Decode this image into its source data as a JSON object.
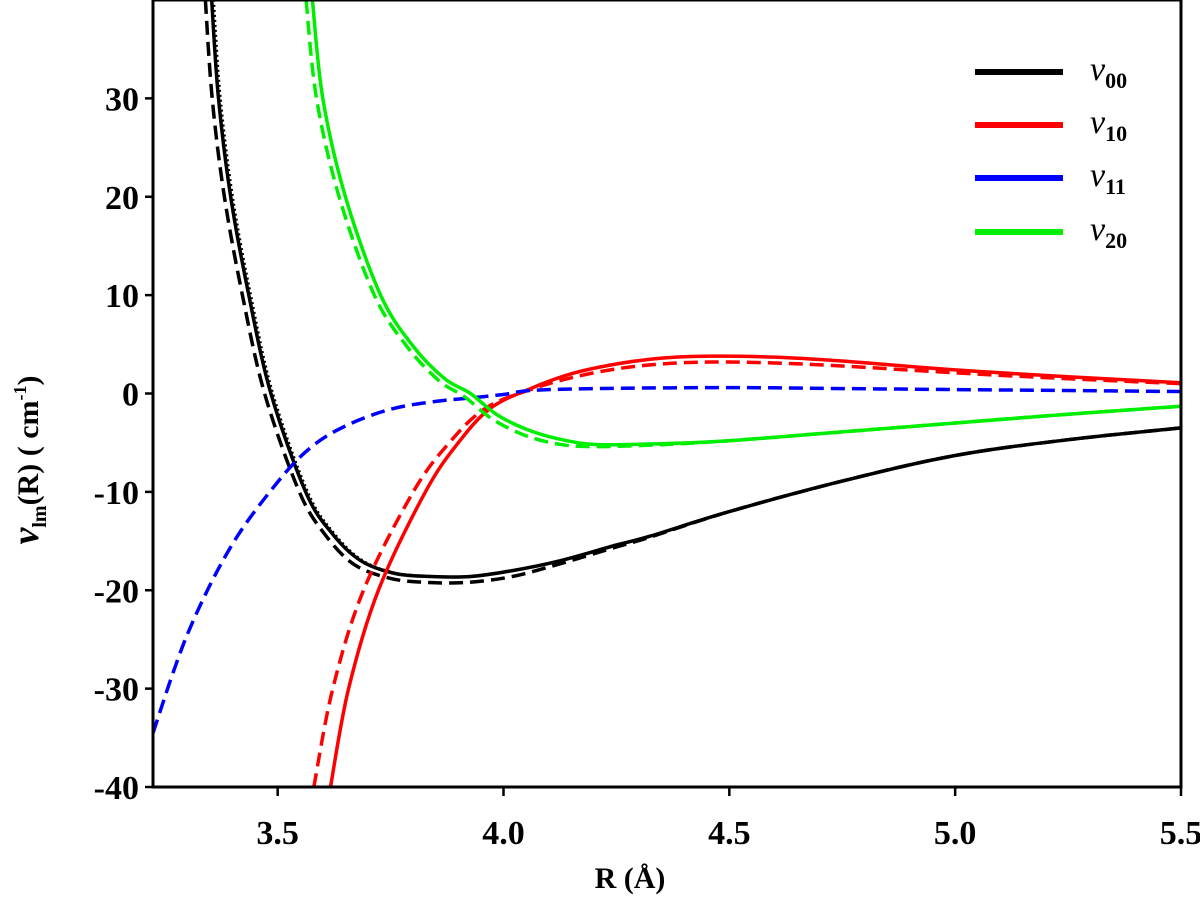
{
  "chart_data": {
    "type": "line",
    "title": "",
    "xlabel": "R (Å)",
    "ylabel": "ν_lm(R) ( cm^-1 )",
    "ylabel_parts": {
      "nu": "ν",
      "sub": "lm",
      "rest": "(R) ( cm",
      "sup": "-1",
      "close": ")"
    },
    "xlim": [
      3.224,
      5.5
    ],
    "ylim": [
      -40,
      40
    ],
    "xticks": [
      3.5,
      4.0,
      4.5,
      5.0,
      5.5
    ],
    "xtick_labels": [
      "3.5",
      "4.0",
      "4.5",
      "5.0",
      "5.5"
    ],
    "yticks": [
      30,
      20,
      10,
      0,
      -10,
      -20,
      -30,
      -40
    ],
    "ytick_labels": [
      "30",
      "20",
      "10",
      "0",
      "-10",
      "-20",
      "-30",
      "-40"
    ],
    "grid": false,
    "legend_position": "upper right",
    "legend": [
      {
        "symbol": "ν",
        "sub": "00",
        "color": "#000000"
      },
      {
        "symbol": "ν",
        "sub": "10",
        "color": "#ff0000"
      },
      {
        "symbol": "ν",
        "sub": "11",
        "color": "#0000ff"
      },
      {
        "symbol": "ν",
        "sub": "20",
        "color": "#00ee00"
      }
    ],
    "series": [
      {
        "name": "ν00 (solid)",
        "color": "#000000",
        "style": "solid",
        "x": [
          3.354,
          3.369,
          3.396,
          3.436,
          3.485,
          3.562,
          3.62,
          3.684,
          3.76,
          3.84,
          3.927,
          4.02,
          4.126,
          4.25,
          4.325,
          4.5,
          4.75,
          5.0,
          5.25,
          5.5
        ],
        "y": [
          40,
          30,
          20,
          10,
          0,
          -10,
          -14.2,
          -17.0,
          -18.3,
          -18.6,
          -18.6,
          -18.0,
          -17.0,
          -15.4,
          -14.5,
          -12.0,
          -8.9,
          -6.3,
          -4.7,
          -3.5
        ]
      },
      {
        "name": "ν00 (dotted)",
        "color": "#000000",
        "style": "dotted",
        "x": [
          3.358,
          3.373,
          3.4,
          3.44,
          3.489,
          3.566,
          3.624,
          3.688,
          3.764,
          3.844,
          3.93,
          4.02,
          4.126,
          4.25,
          4.325,
          4.5,
          4.75,
          5.0,
          5.25,
          5.5
        ],
        "y": [
          40,
          30,
          20,
          10,
          0,
          -10,
          -14.2,
          -17.0,
          -18.3,
          -18.6,
          -18.6,
          -18.0,
          -17.0,
          -15.4,
          -14.5,
          -12.0,
          -8.9,
          -6.3,
          -4.7,
          -3.5
        ]
      },
      {
        "name": "ν00 (dashed)",
        "color": "#000000",
        "style": "dashed",
        "x": [
          3.34,
          3.355,
          3.382,
          3.422,
          3.471,
          3.548,
          3.606,
          3.67,
          3.75,
          3.83,
          3.92,
          4.02,
          4.126,
          4.25,
          4.325,
          4.5,
          4.75,
          5.0,
          5.25,
          5.5
        ],
        "y": [
          40,
          30,
          20,
          10,
          0,
          -10,
          -14.4,
          -17.4,
          -18.8,
          -19.2,
          -19.2,
          -18.6,
          -17.3,
          -15.6,
          -14.6,
          -12.0,
          -8.9,
          -6.3,
          -4.7,
          -3.5
        ]
      },
      {
        "name": "ν10 (solid)",
        "color": "#ff0000",
        "style": "solid",
        "x": [
          3.617,
          3.657,
          3.723,
          3.827,
          3.9,
          3.971,
          4.06,
          4.15,
          4.25,
          4.35,
          4.46,
          4.6,
          4.75,
          5.0,
          5.25,
          5.5
        ],
        "y": [
          -40,
          -30,
          -20,
          -10,
          -5,
          -1.5,
          0.5,
          2.0,
          3.0,
          3.6,
          3.8,
          3.7,
          3.3,
          2.4,
          1.7,
          1.1
        ]
      },
      {
        "name": "ν10 (dashed)",
        "color": "#ff0000",
        "style": "dashed",
        "x": [
          3.58,
          3.622,
          3.69,
          3.8,
          3.88,
          3.96,
          4.06,
          4.15,
          4.25,
          4.35,
          4.46,
          4.6,
          4.75,
          5.0,
          5.25,
          5.5
        ],
        "y": [
          -40,
          -30,
          -20,
          -10,
          -5,
          -1.5,
          0.4,
          1.6,
          2.5,
          3.0,
          3.2,
          3.1,
          2.8,
          2.1,
          1.5,
          1.0
        ]
      },
      {
        "name": "ν11 (dashed)",
        "color": "#0000ff",
        "style": "dashed",
        "x": [
          3.224,
          3.3,
          3.396,
          3.5,
          3.573,
          3.65,
          3.75,
          3.85,
          3.916,
          4.0,
          4.06,
          4.2,
          4.5,
          4.75,
          5.0,
          5.25,
          5.5
        ],
        "y": [
          -34.5,
          -24.5,
          -15.6,
          -9.0,
          -5.5,
          -3.3,
          -1.6,
          -0.8,
          -0.5,
          -0.1,
          0.3,
          0.5,
          0.6,
          0.5,
          0.4,
          0.3,
          0.2
        ]
      },
      {
        "name": "ν20 (solid)",
        "color": "#00ee00",
        "style": "solid",
        "x": [
          3.577,
          3.6,
          3.65,
          3.728,
          3.8,
          3.87,
          3.927,
          3.987,
          4.06,
          4.14,
          4.215,
          4.35,
          4.5,
          4.75,
          5.0,
          5.25,
          5.5
        ],
        "y": [
          40,
          30,
          20,
          10,
          4.8,
          1.5,
          0,
          -2.2,
          -3.8,
          -4.8,
          -5.2,
          -5.1,
          -4.8,
          -3.9,
          -3.0,
          -2.1,
          -1.3
        ]
      },
      {
        "name": "ν20 (dashed)",
        "color": "#00ee00",
        "style": "dashed",
        "x": [
          3.563,
          3.586,
          3.636,
          3.714,
          3.786,
          3.857,
          3.913,
          3.975,
          4.05,
          4.13,
          4.21,
          4.35,
          4.5,
          4.75,
          5.0,
          5.25,
          5.5
        ],
        "y": [
          40,
          30,
          20,
          10,
          4.8,
          1.3,
          -0.3,
          -2.6,
          -4.3,
          -5.2,
          -5.4,
          -5.2,
          -4.8,
          -3.9,
          -3.0,
          -2.1,
          -1.3
        ]
      }
    ]
  }
}
